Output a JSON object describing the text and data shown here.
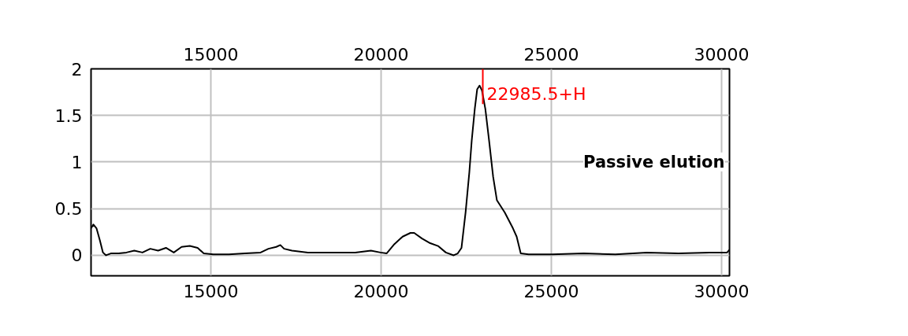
{
  "chart_data": {
    "type": "line",
    "annotations": [
      "Passive elution"
    ],
    "x": [
      11480,
      11550,
      11640,
      11740,
      11830,
      11920,
      12060,
      12290,
      12520,
      12750,
      12990,
      13220,
      13450,
      13680,
      13910,
      14140,
      14380,
      14610,
      14790,
      15070,
      15530,
      16000,
      16460,
      16690,
      16920,
      17040,
      17150,
      17380,
      17850,
      18310,
      18770,
      19240,
      19700,
      19980,
      20160,
      20390,
      20630,
      20860,
      20970,
      21200,
      21440,
      21670,
      21900,
      22130,
      22250,
      22360,
      22480,
      22590,
      22660,
      22750,
      22820,
      22890,
      22960,
      23060,
      23170,
      23290,
      23400,
      23630,
      23870,
      23980,
      24100,
      24330,
      25020,
      25950,
      26880,
      27800,
      28730,
      29650,
      30160,
      30230
    ],
    "series": [
      {
        "color": "#000000",
        "values": [
          0.29,
          0.33,
          0.29,
          0.16,
          0.03,
          0,
          0.02,
          0.02,
          0.03,
          0.05,
          0.03,
          0.07,
          0.05,
          0.08,
          0.03,
          0.09,
          0.1,
          0.08,
          0.02,
          0.01,
          0.01,
          0.02,
          0.03,
          0.07,
          0.09,
          0.11,
          0.07,
          0.05,
          0.03,
          0.03,
          0.03,
          0.03,
          0.05,
          0.03,
          0.02,
          0.12,
          0.2,
          0.24,
          0.24,
          0.18,
          0.13,
          0.1,
          0.03,
          0,
          0.02,
          0.08,
          0.46,
          0.89,
          1.23,
          1.57,
          1.78,
          1.82,
          1.77,
          1.57,
          1.23,
          0.84,
          0.59,
          0.46,
          0.29,
          0.2,
          0.02,
          0.01,
          0.01,
          0.02,
          0.01,
          0.03,
          0.02,
          0.03,
          0.03,
          0.06
        ]
      }
    ],
    "xlim": [
      11480,
      30230
    ],
    "xticks": [
      15000,
      20000,
      25000,
      30000
    ],
    "x2lim": [
      11480,
      30230
    ],
    "x2ticks": [
      15000,
      20000,
      25000,
      30000
    ],
    "ylim": [
      -0.22,
      2.0
    ],
    "yticks": [
      0,
      0.5,
      1,
      1.5,
      2
    ],
    "ref_lines": [
      {
        "axis": "x",
        "value": 22985.5,
        "label": "22985.5+H",
        "color": "#ff0000"
      }
    ],
    "grid": true,
    "marker": "none",
    "line_style": "solid"
  }
}
